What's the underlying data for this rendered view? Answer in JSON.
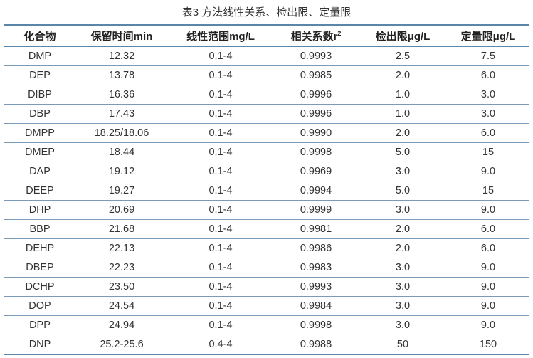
{
  "title": "表3 方法线性关系、检出限、定量限",
  "colors": {
    "rule": "#5b86a8"
  },
  "headers": [
    "化合物",
    "保留时间min",
    "线性范围mg/L",
    "相关系数r",
    "检出限μg/L",
    "定量限μg/L"
  ],
  "header_sup": "2",
  "rows": [
    [
      "DMP",
      "12.32",
      "0.1-4",
      "0.9993",
      "2.5",
      "7.5"
    ],
    [
      "DEP",
      "13.78",
      "0.1-4",
      "0.9985",
      "2.0",
      "6.0"
    ],
    [
      "DIBP",
      "16.36",
      "0.1-4",
      "0.9996",
      "1.0",
      "3.0"
    ],
    [
      "DBP",
      "17.43",
      "0.1-4",
      "0.9996",
      "1.0",
      "3.0"
    ],
    [
      "DMPP",
      "18.25/18.06",
      "0.1-4",
      "0.9990",
      "2.0",
      "6.0"
    ],
    [
      "DMEP",
      "18.44",
      "0.1-4",
      "0.9998",
      "5.0",
      "15"
    ],
    [
      "DAP",
      "19.12",
      "0.1-4",
      "0.9969",
      "3.0",
      "9.0"
    ],
    [
      "DEEP",
      "19.27",
      "0.1-4",
      "0.9994",
      "5.0",
      "15"
    ],
    [
      "DHP",
      "20.69",
      "0.1-4",
      "0.9999",
      "3.0",
      "9.0"
    ],
    [
      "BBP",
      "21.68",
      "0.1-4",
      "0.9981",
      "2.0",
      "6.0"
    ],
    [
      "DEHP",
      "22.13",
      "0.1-4",
      "0.9986",
      "2.0",
      "6.0"
    ],
    [
      "DBEP",
      "22.23",
      "0.1-4",
      "0.9983",
      "3.0",
      "9.0"
    ],
    [
      "DCHP",
      "23.50",
      "0.1-4",
      "0.9993",
      "3.0",
      "9.0"
    ],
    [
      "DOP",
      "24.54",
      "0.1-4",
      "0.9984",
      "3.0",
      "9.0"
    ],
    [
      "DPP",
      "24.94",
      "0.1-4",
      "0.9998",
      "3.0",
      "9.0"
    ],
    [
      "DNP",
      "25.2-25.6",
      "0.4-4",
      "0.9988",
      "50",
      "150"
    ]
  ]
}
